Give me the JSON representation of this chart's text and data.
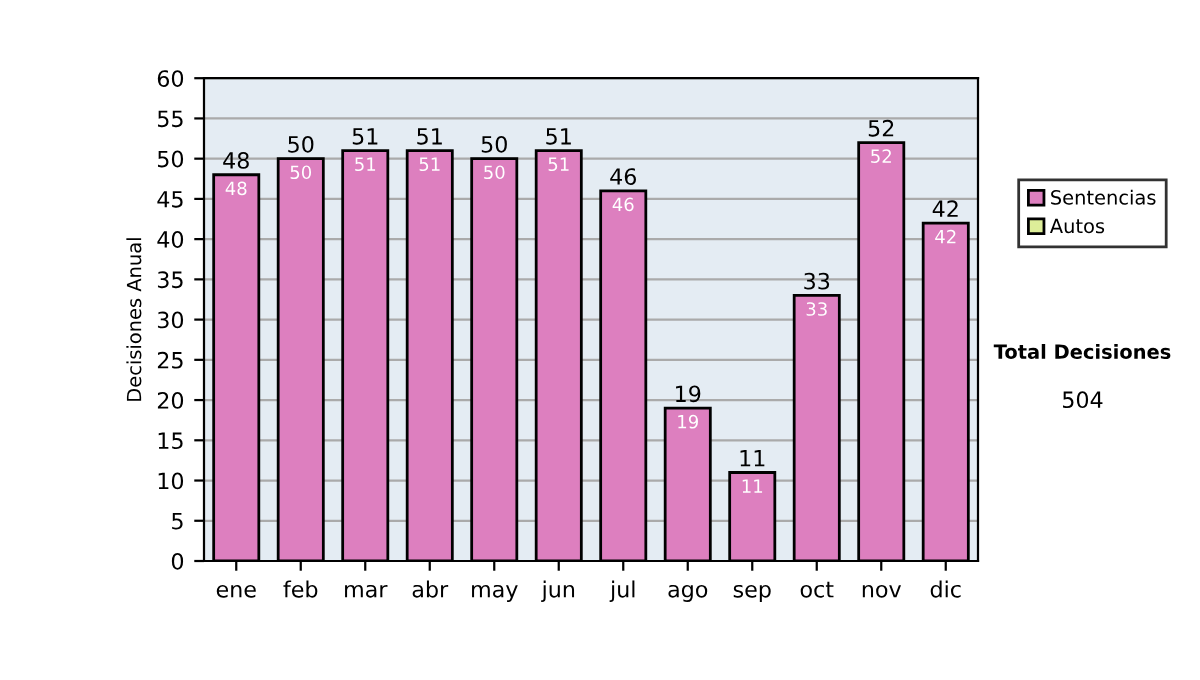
{
  "chart_data": {
    "type": "bar",
    "stacked": true,
    "ylabel": "Decisiones Anual",
    "categories": [
      "ene",
      "feb",
      "mar",
      "abr",
      "may",
      "jun",
      "jul",
      "ago",
      "sep",
      "oct",
      "nov",
      "dic"
    ],
    "series": [
      {
        "name": "Sentencias",
        "color": "#dd7fbf",
        "values": [
          48,
          50,
          51,
          51,
          50,
          51,
          46,
          19,
          11,
          33,
          52,
          42
        ],
        "value_labels": [
          "48",
          "50",
          "51",
          "51",
          "50",
          "51",
          "46",
          "19",
          "11",
          "33",
          "52",
          "42"
        ]
      },
      {
        "name": "Autos",
        "color": "#ddee99",
        "values": [
          0,
          0,
          0,
          0,
          0,
          0,
          0,
          0,
          0,
          0,
          0,
          0
        ]
      }
    ],
    "totals": [
      "48",
      "50",
      "51",
      "51",
      "50",
      "51",
      "46",
      "19",
      "11",
      "33",
      "52",
      "42"
    ],
    "ylim": [
      0,
      60
    ],
    "yticks": [
      0,
      5,
      10,
      15,
      20,
      25,
      30,
      35,
      40,
      45,
      50,
      55,
      60
    ],
    "grid": "y",
    "legend": "right",
    "annotations": [
      "Total Decisiones",
      "504"
    ]
  }
}
